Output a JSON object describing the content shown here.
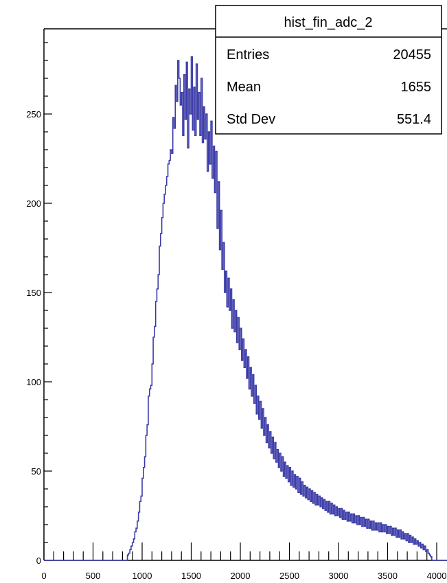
{
  "chart_data": {
    "type": "histogram",
    "x_range": [
      0,
      4000
    ],
    "y_range": [
      0,
      295
    ],
    "x_ticks": [
      "0",
      "500",
      "1000",
      "1500",
      "2000",
      "2500",
      "3000",
      "3500",
      "4000"
    ],
    "y_ticks": [
      "0",
      "50",
      "100",
      "150",
      "200",
      "250"
    ],
    "line_color": "#3b3ba8",
    "fill": "none",
    "grid": false,
    "bin_width": 12.5,
    "bins_start": 850,
    "counts": [
      3,
      4,
      6,
      8,
      10,
      12,
      16,
      18,
      22,
      27,
      33,
      36,
      46,
      52,
      58,
      70,
      76,
      92,
      96,
      98,
      110,
      125,
      131,
      145,
      152,
      160,
      176,
      183,
      192,
      200,
      205,
      210,
      215,
      222,
      224,
      230,
      228,
      248,
      242,
      266,
      257,
      280,
      270,
      255,
      262,
      238,
      272,
      247,
      279,
      231,
      264,
      250,
      282,
      241,
      265,
      238,
      278,
      247,
      262,
      238,
      270,
      234,
      254,
      236,
      250,
      218,
      240,
      222,
      246,
      214,
      232,
      206,
      229,
      186,
      212,
      174,
      196,
      163,
      178,
      150,
      162,
      142,
      158,
      140,
      152,
      130,
      146,
      128,
      140,
      122,
      136,
      118,
      130,
      112,
      124,
      108,
      118,
      102,
      114,
      96,
      108,
      92,
      104,
      88,
      98,
      82,
      92,
      79,
      89,
      74,
      85,
      70,
      80,
      66,
      76,
      63,
      72,
      60,
      69,
      57,
      66,
      55,
      62,
      52,
      60,
      50,
      58,
      47,
      55,
      46,
      53,
      44,
      52,
      42,
      50,
      41,
      48,
      40,
      47,
      38,
      46,
      37,
      44,
      36,
      42,
      35,
      41,
      34,
      40,
      33,
      39,
      32,
      38,
      31,
      37,
      31,
      36,
      30,
      35,
      29,
      34,
      28,
      33,
      27,
      33,
      26,
      32,
      26,
      31,
      25,
      30,
      25,
      29,
      24,
      29,
      23,
      28,
      23,
      27,
      22,
      27,
      22,
      26,
      21,
      26,
      21,
      25,
      20,
      25,
      20,
      24,
      19,
      24,
      19,
      23,
      18,
      23,
      18,
      22,
      17,
      22,
      17,
      21,
      17,
      21,
      16,
      21,
      16,
      20,
      16,
      20,
      15,
      19,
      15,
      19,
      14,
      18,
      14,
      18,
      13,
      17,
      13,
      17,
      12,
      16,
      12,
      15,
      11,
      15,
      10,
      14,
      10,
      13,
      9,
      12,
      9,
      11,
      8,
      10,
      7,
      9,
      6,
      8,
      5,
      6,
      4,
      3,
      2
    ]
  },
  "stats_box": {
    "title": "hist_fin_adc_2",
    "rows": [
      {
        "label": "Entries",
        "value": "20455"
      },
      {
        "label": "Mean",
        "value": "1655"
      },
      {
        "label": "Std Dev",
        "value": "551.4"
      }
    ]
  }
}
